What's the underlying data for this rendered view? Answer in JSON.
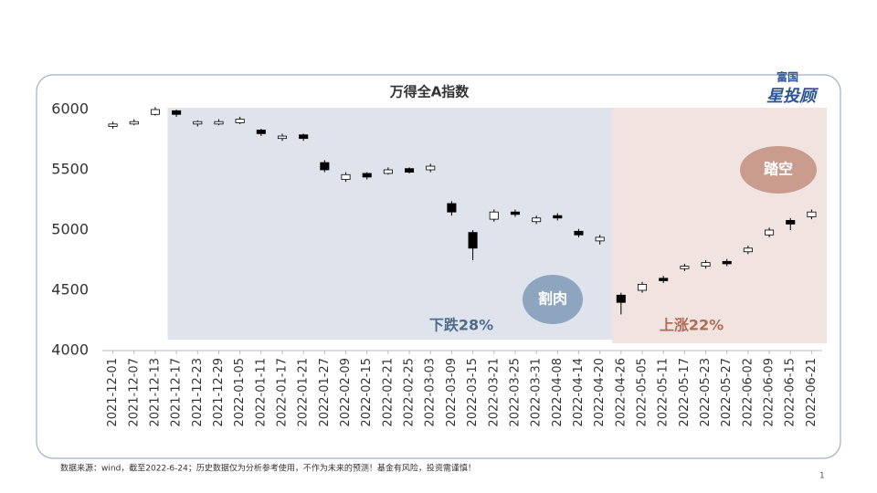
{
  "chart_data": {
    "type": "candlestick",
    "title": "万得全A指数",
    "categories": [
      "2021-12-01",
      "2021-12-07",
      "2021-12-13",
      "2021-12-17",
      "2021-12-23",
      "2021-12-29",
      "2022-01-05",
      "2022-01-11",
      "2022-01-17",
      "2022-01-21",
      "2022-01-27",
      "2022-02-09",
      "2022-02-15",
      "2022-02-21",
      "2022-02-25",
      "2022-03-03",
      "2022-03-09",
      "2022-03-15",
      "2022-03-21",
      "2022-03-25",
      "2022-03-31",
      "2022-04-08",
      "2022-04-14",
      "2022-04-20",
      "2022-04-26",
      "2022-05-05",
      "2022-05-11",
      "2022-05-17",
      "2022-05-23",
      "2022-05-27",
      "2022-06-02",
      "2022-06-09",
      "2022-06-15",
      "2022-06-21"
    ],
    "open": [
      5860,
      5880,
      5960,
      5990,
      5880,
      5880,
      5890,
      5830,
      5760,
      5790,
      5560,
      5420,
      5470,
      5470,
      5510,
      5500,
      5220,
      4980,
      5090,
      5150,
      5070,
      5120,
      4990,
      4910,
      4460,
      4500,
      4600,
      4680,
      4700,
      4740,
      4820,
      4960,
      5080,
      5110
    ],
    "high": [
      5900,
      5920,
      6020,
      6000,
      5910,
      5920,
      5940,
      5840,
      5800,
      5800,
      5580,
      5480,
      5480,
      5520,
      5520,
      5550,
      5240,
      5000,
      5170,
      5170,
      5120,
      5140,
      5010,
      4960,
      4480,
      4570,
      4620,
      4720,
      4750,
      4760,
      4870,
      5020,
      5100,
      5170
    ],
    "low": [
      5840,
      5870,
      5950,
      5940,
      5860,
      5870,
      5880,
      5780,
      5740,
      5740,
      5480,
      5400,
      5420,
      5460,
      5470,
      5480,
      5120,
      4750,
      5070,
      5110,
      5050,
      5080,
      4940,
      4880,
      4300,
      4480,
      4560,
      4660,
      4680,
      4700,
      4800,
      4940,
      5000,
      5090
    ],
    "close": [
      5880,
      5900,
      6000,
      5960,
      5900,
      5900,
      5920,
      5800,
      5780,
      5760,
      5500,
      5460,
      5440,
      5500,
      5480,
      5530,
      5150,
      4850,
      5150,
      5130,
      5100,
      5100,
      4960,
      4940,
      4400,
      4550,
      4580,
      4700,
      4730,
      4720,
      4850,
      5000,
      5050,
      5150
    ],
    "up_color": "#ffffff",
    "down_color": "#000000",
    "ylim": [
      4000,
      6000
    ],
    "yticks": [
      4000,
      4500,
      5000,
      5500,
      6000
    ],
    "regions": [
      {
        "label": "下跌28%",
        "from": "2021-12-17",
        "to": "2022-04-26",
        "color": "#dfe4ec",
        "text_color": "#4f6b8c"
      },
      {
        "label": "上涨22%",
        "from": "2022-04-26",
        "to": "2022-06-21",
        "color": "#f1e3df",
        "text_color": "#b06a55"
      }
    ],
    "bubbles": [
      {
        "label": "割肉",
        "color": "#8ea5c0"
      },
      {
        "label": "踏空",
        "color": "#c99c8e"
      }
    ]
  },
  "logo": {
    "top": "富国",
    "main": "星投顾"
  },
  "footnote": "数据来源：wind，截至2022-6-24；历史数据仅为分析参考使用，不作为未来的预测！基金有风险，投资需谨慎！",
  "page_number": "1"
}
